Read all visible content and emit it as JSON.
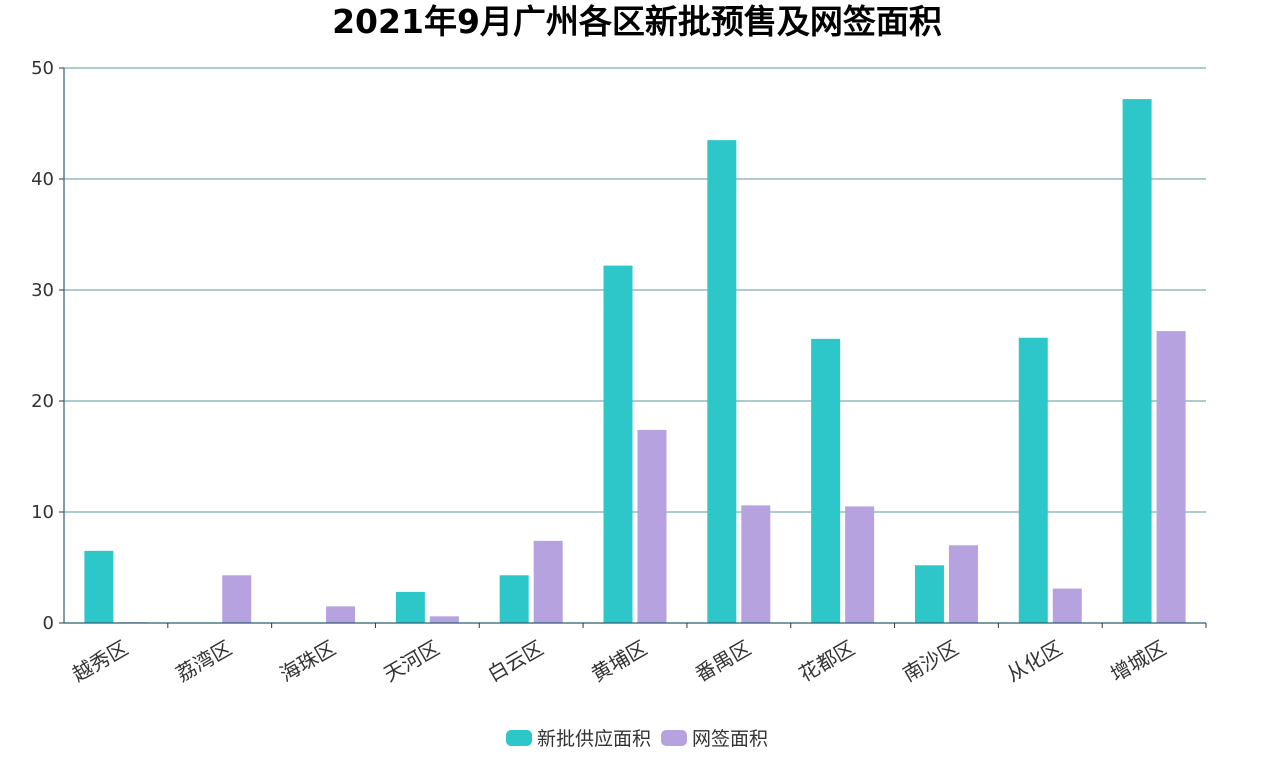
{
  "chart_data": {
    "type": "bar",
    "title": "2021年9月广州各区新批预售及网签面积",
    "categories": [
      "越秀区",
      "荔湾区",
      "海珠区",
      "天河区",
      "白云区",
      "黄埔区",
      "番禺区",
      "花都区",
      "南沙区",
      "从化区",
      "增城区"
    ],
    "series": [
      {
        "name": "新批供应面积",
        "color": "#2ec7c9",
        "values": [
          6.5,
          0,
          0,
          2.8,
          4.3,
          32.2,
          43.5,
          25.6,
          5.2,
          25.7,
          47.2
        ]
      },
      {
        "name": "网签面积",
        "color": "#b6a2de",
        "values": [
          0.05,
          4.3,
          1.5,
          0.6,
          7.4,
          17.4,
          10.6,
          10.5,
          7.0,
          3.1,
          26.3
        ]
      }
    ],
    "ylim": [
      0,
      50
    ],
    "yticks": [
      0,
      10,
      20,
      30,
      40,
      50
    ],
    "grid": true,
    "legend_position": "bottom-center"
  }
}
